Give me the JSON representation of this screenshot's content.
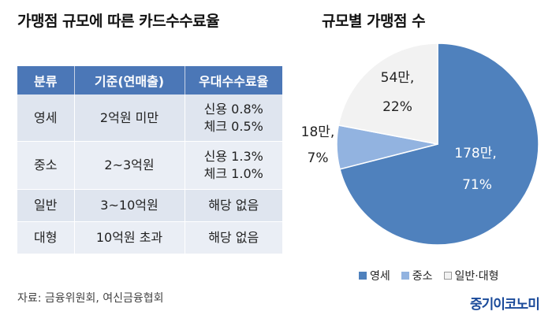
{
  "left_title": "가맹점 규모에 따른 카드수수료율",
  "right_title": "규모별 가맹점 수",
  "table": {
    "headers": [
      "분류",
      "기준(연매출)",
      "우대수수료율"
    ],
    "rows": [
      {
        "category": "영세",
        "criterion": "2억원 미만",
        "rates": [
          "신용 0.8%",
          "체크 0.5%"
        ]
      },
      {
        "category": "중소",
        "criterion": "2~3억원",
        "rates": [
          "신용 1.3%",
          "체크 1.0%"
        ]
      },
      {
        "category": "일반",
        "criterion": "3~10억원",
        "rates": [
          "해당 없음"
        ]
      },
      {
        "category": "대형",
        "criterion": "10억원 초과",
        "rates": [
          "해당 없음"
        ]
      }
    ]
  },
  "source": "자료: 금융위원회, 여신금융협회",
  "brand": "중기이코노미",
  "chart_data": {
    "type": "pie",
    "title": "규모별 가맹점 수",
    "slices": [
      {
        "name": "영세",
        "count_label": "178만,",
        "percent_label": "71%",
        "value": 71,
        "color": "#4f81bd"
      },
      {
        "name": "중소",
        "count_label": "18만,",
        "percent_label": "7%",
        "value": 7,
        "color": "#92b3e0"
      },
      {
        "name": "일반·대형",
        "count_label": "54만,",
        "percent_label": "22%",
        "value": 22,
        "color": "#f2f2f2"
      }
    ],
    "legend_position": "bottom"
  }
}
